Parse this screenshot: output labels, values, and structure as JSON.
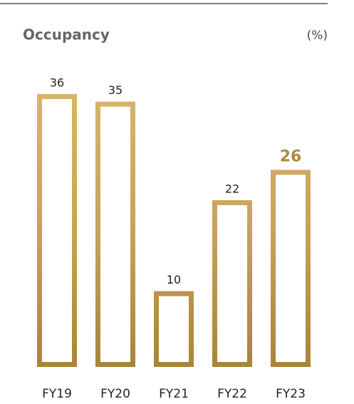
{
  "chart_data": {
    "type": "bar",
    "title": "Occupancy",
    "unit_label": "(%)",
    "categories": [
      "FY19",
      "FY20",
      "FY21",
      "FY22",
      "FY23"
    ],
    "values": [
      36,
      35,
      10,
      22,
      26
    ],
    "ylim": [
      0,
      36
    ],
    "color": "#c9a25a",
    "highlight": "FY23",
    "highlight_color": "#b08a3a"
  }
}
